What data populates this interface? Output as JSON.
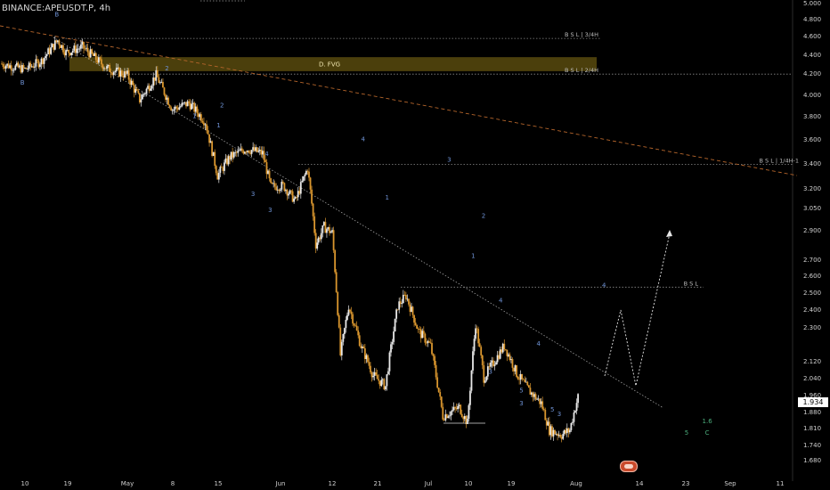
{
  "header": {
    "symbol": "BINANCE:APEUSDT.P, 4h"
  },
  "last_price": "1.934",
  "colors": {
    "background": "#000000",
    "candle_up": "#e8e8e8",
    "candle_down": "#d9962e",
    "wave_label": "#6f93d6",
    "wave_label_green": "#4caf7d",
    "fvg_zone": "#4b3f0c",
    "bsl_line": "#8a8a8a",
    "trendline": "#a0a0a0",
    "projection": "#e6e6e6"
  },
  "chart_data": {
    "type": "candlestick",
    "title": "",
    "y_ticks": [
      "5.000",
      "4.800",
      "4.600",
      "4.400",
      "4.200",
      "4.000",
      "3.800",
      "3.600",
      "3.400",
      "3.200",
      "3.050",
      "2.900",
      "2.700",
      "2.600",
      "2.500",
      "2.400",
      "2.300",
      "2.120",
      "2.040",
      "1.960",
      "1.880",
      "1.810",
      "1.740",
      "1.680"
    ],
    "x_ticks": [
      "10",
      "19",
      "May",
      "8",
      "15",
      "Jun",
      "12",
      "21",
      "Jul",
      "10",
      "19",
      "Aug",
      "14",
      "23",
      "Sep",
      "11"
    ],
    "price_path": [
      [
        0,
        4.3
      ],
      [
        6,
        4.24
      ],
      [
        10,
        4.33
      ],
      [
        14,
        4.55
      ],
      [
        16,
        4.42
      ],
      [
        20,
        4.48
      ],
      [
        26,
        4.25
      ],
      [
        31,
        4.18
      ],
      [
        34,
        3.95
      ],
      [
        38,
        4.18
      ],
      [
        42,
        3.86
      ],
      [
        46,
        3.92
      ],
      [
        50,
        3.75
      ],
      [
        53,
        3.3
      ],
      [
        56,
        3.45
      ],
      [
        60,
        3.52
      ],
      [
        64,
        3.48
      ],
      [
        66,
        3.21
      ],
      [
        69,
        3.22
      ],
      [
        72,
        3.1
      ],
      [
        75,
        3.36
      ],
      [
        77,
        2.8
      ],
      [
        79,
        2.92
      ],
      [
        81,
        2.88
      ],
      [
        83,
        2.15
      ],
      [
        85,
        2.42
      ],
      [
        88,
        2.2
      ],
      [
        91,
        2.05
      ],
      [
        94,
        2.0
      ],
      [
        97,
        2.42
      ],
      [
        99,
        2.48
      ],
      [
        102,
        2.28
      ],
      [
        105,
        2.2
      ],
      [
        108,
        1.86
      ],
      [
        112,
        1.9
      ],
      [
        114,
        1.83
      ],
      [
        116,
        2.32
      ],
      [
        118,
        2.04
      ],
      [
        120,
        2.1
      ],
      [
        123,
        2.2
      ],
      [
        126,
        2.06
      ],
      [
        129,
        1.98
      ],
      [
        132,
        1.92
      ],
      [
        134,
        1.8
      ],
      [
        137,
        1.78
      ],
      [
        139,
        1.8
      ],
      [
        141,
        1.95
      ]
    ],
    "y_range": [
      1.66,
      5.02
    ],
    "zones": [
      {
        "label": "D. FVG",
        "top": 4.37,
        "bottom": 4.22
      }
    ],
    "levels": [
      {
        "label": "B S L  |  3/4H",
        "price": 4.57
      },
      {
        "label": "B S L  |  2/4H",
        "price": 4.19
      },
      {
        "label": "B S L  |  1/4H-1",
        "price": 3.39
      },
      {
        "label": "B S L",
        "price": 2.53
      }
    ],
    "wave_labels": [
      {
        "text": "B",
        "x": 6,
        "price": 4.09
      },
      {
        "text": "B",
        "x": 16,
        "price": 4.83
      },
      {
        "text": "2",
        "x": 48,
        "price": 4.23
      },
      {
        "text": "1",
        "x": 56,
        "price": 3.78
      },
      {
        "text": "2",
        "x": 64,
        "price": 3.88
      },
      {
        "text": "1",
        "x": 63,
        "price": 3.7
      },
      {
        "text": "4",
        "x": 77,
        "price": 3.46
      },
      {
        "text": "3",
        "x": 73,
        "price": 3.14
      },
      {
        "text": "3",
        "x": 78,
        "price": 3.02
      },
      {
        "text": "4",
        "x": 105,
        "price": 3.58
      },
      {
        "text": "1",
        "x": 112,
        "price": 3.11
      },
      {
        "text": "3",
        "x": 130,
        "price": 3.41
      },
      {
        "text": "2",
        "x": 140,
        "price": 2.98
      },
      {
        "text": "1",
        "x": 137,
        "price": 2.71
      },
      {
        "text": "4",
        "x": 145,
        "price": 2.44
      },
      {
        "text": "3",
        "x": 142,
        "price": 2.06
      },
      {
        "text": "5",
        "x": 151,
        "price": 1.97
      },
      {
        "text": "4",
        "x": 156,
        "price": 2.2
      },
      {
        "text": "3",
        "x": 151,
        "price": 1.91
      },
      {
        "text": "5",
        "x": 160,
        "price": 1.88
      },
      {
        "text": "3",
        "x": 162,
        "price": 1.86
      },
      {
        "text": "4",
        "x": 175,
        "price": 2.53
      },
      {
        "text": "1.6",
        "x": 205,
        "price": 1.83
      },
      {
        "text": "5",
        "x": 199,
        "price": 1.78
      },
      {
        "text": "C",
        "x": 205,
        "price": 1.78
      }
    ],
    "projection_path": [
      [
        141,
        1.95
      ],
      [
        147,
        2.4
      ],
      [
        152,
        2.02
      ],
      [
        158,
        2.88
      ]
    ]
  }
}
